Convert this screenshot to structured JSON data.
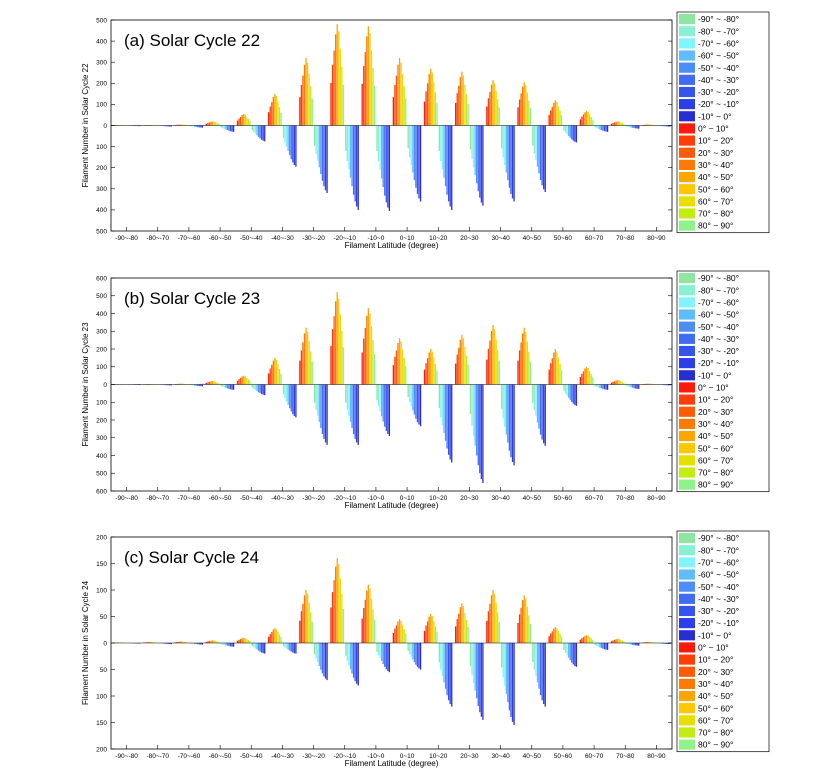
{
  "chart_data": [
    {
      "type": "bar",
      "title": "(a) Solar Cycle 22",
      "xlabel": "Filament Latitude (degree)",
      "ylabel": "Filament Number in Solar Cycle 22",
      "ylim": [
        -500,
        500
      ],
      "yticks": [
        500,
        400,
        300,
        200,
        100,
        0,
        100,
        200,
        300,
        400,
        500
      ],
      "categories": [
        "-90~-80",
        "-80~-70",
        "-70~-60",
        "-60~-50",
        "-50~-40",
        "-40~-30",
        "-30~-20",
        "-20~-10",
        "-10~0",
        "0~10",
        "10~20",
        "20~30",
        "30~40",
        "40~50",
        "50~60",
        "60~70",
        "70~80",
        "80~90"
      ],
      "north_peak": [
        2,
        3,
        5,
        20,
        55,
        150,
        320,
        480,
        470,
        320,
        270,
        255,
        215,
        205,
        120,
        70,
        20,
        5
      ],
      "south_peak": [
        -3,
        -5,
        -10,
        -30,
        -75,
        -195,
        -320,
        -400,
        -405,
        -360,
        -400,
        -380,
        -360,
        -315,
        -80,
        -30,
        -15,
        -5
      ],
      "legend": [
        "-90° ~ -80°",
        "-80° ~ -70°",
        "-70° ~ -60°",
        "-60° ~ -50°",
        "-50° ~ -40°",
        "-40° ~ -30°",
        "-30° ~ -20°",
        "-20° ~ -10°",
        "-10° ~ 0°",
        "0° ~ 10°",
        "10° ~ 20°",
        "20° ~ 30°",
        "30° ~ 40°",
        "40° ~ 50°",
        "50° ~ 60°",
        "60° ~ 70°",
        "70° ~ 80°",
        "80° ~ 90°"
      ]
    },
    {
      "type": "bar",
      "title": "(b) Solar Cycle 23",
      "xlabel": "Filament Latitude (degree)",
      "ylabel": "Filament Number in Solar Cycle 23",
      "ylim": [
        -600,
        600
      ],
      "yticks": [
        600,
        500,
        400,
        300,
        200,
        100,
        0,
        100,
        200,
        300,
        400,
        500,
        600
      ],
      "categories": [
        "-90~-80",
        "-80~-70",
        "-70~-60",
        "-60~-50",
        "-50~-40",
        "-40~-30",
        "-30~-20",
        "-20~-10",
        "-10~0",
        "0~10",
        "10~20",
        "20~30",
        "30~40",
        "40~50",
        "50~60",
        "60~70",
        "70~80",
        "80~90"
      ],
      "north_peak": [
        2,
        3,
        5,
        20,
        50,
        150,
        320,
        520,
        430,
        260,
        200,
        280,
        335,
        320,
        200,
        100,
        25,
        5
      ],
      "south_peak": [
        -3,
        -5,
        -10,
        -30,
        -60,
        -185,
        -340,
        -340,
        -290,
        -235,
        -440,
        -555,
        -455,
        -345,
        -120,
        -30,
        -25,
        -5
      ],
      "legend": [
        "-90° ~ -80°",
        "-80° ~ -70°",
        "-70° ~ -60°",
        "-60° ~ -50°",
        "-50° ~ -40°",
        "-40° ~ -30°",
        "-30° ~ -20°",
        "-20° ~ -10°",
        "-10° ~ 0°",
        "0° ~ 10°",
        "10° ~ 20°",
        "20° ~ 30°",
        "30° ~ 40°",
        "40° ~ 50°",
        "50° ~ 60°",
        "60° ~ 70°",
        "70° ~ 80°",
        "80° ~ 90°"
      ]
    },
    {
      "type": "bar",
      "title": "(c) Solar Cycle 24",
      "xlabel": "Filament Latitude (degree)",
      "ylabel": "Filament Number in Solar Cycle 24",
      "ylim": [
        -200,
        200
      ],
      "yticks": [
        200,
        150,
        100,
        50,
        0,
        50,
        100,
        150,
        200
      ],
      "categories": [
        "-90~-80",
        "-80~-70",
        "-70~-60",
        "-60~-50",
        "-50~-40",
        "-40~-30",
        "-30~-20",
        "-20~-10",
        "-10~0",
        "0~10",
        "10~20",
        "20~30",
        "30~40",
        "40~50",
        "50~60",
        "60~70",
        "70~80",
        "80~90"
      ],
      "north_peak": [
        1,
        2,
        3,
        5,
        10,
        28,
        100,
        160,
        110,
        45,
        55,
        75,
        100,
        90,
        30,
        15,
        8,
        2
      ],
      "south_peak": [
        -1,
        -2,
        -3,
        -7,
        -20,
        -20,
        -70,
        -80,
        -55,
        -50,
        -120,
        -145,
        -155,
        -120,
        -45,
        -13,
        -5,
        -2
      ],
      "legend": [
        "-90° ~ -80°",
        "-80° ~ -70°",
        "-70° ~ -60°",
        "-60° ~ -50°",
        "-50° ~ -40°",
        "-40° ~ -30°",
        "-30° ~ -20°",
        "-20° ~ -10°",
        "-10° ~ 0°",
        "0° ~ 10°",
        "10° ~ 20°",
        "20° ~ 30°",
        "30° ~ 40°",
        "40° ~ 50°",
        "50° ~ 60°",
        "60° ~ 70°",
        "70° ~ 80°",
        "80° ~ 90°"
      ]
    }
  ],
  "colors": {
    "south": [
      "#8ee6a0",
      "#8af0d4",
      "#80f4ff",
      "#5fbdfc",
      "#4a8ef6",
      "#3f6cf2",
      "#3554ee",
      "#2b3fe8",
      "#2a2ed0"
    ],
    "north": [
      "#ff1a0a",
      "#ff3d08",
      "#ff5a05",
      "#ff7a03",
      "#ffa500",
      "#ffc800",
      "#e6e000",
      "#c4ec10",
      "#8ef48a"
    ]
  }
}
